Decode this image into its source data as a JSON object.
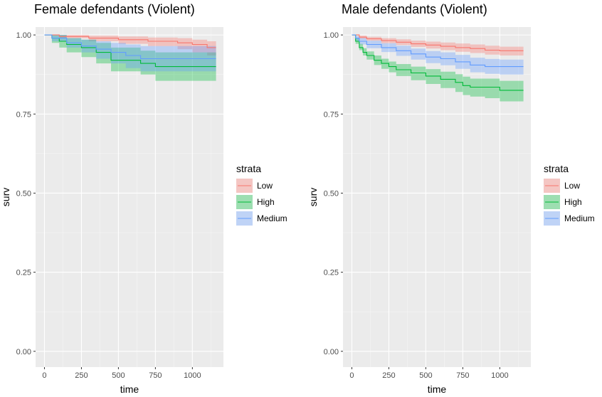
{
  "colors": {
    "panel_bg": "#EBEBEB",
    "grid_major": "#FFFFFF",
    "grid_minor": "#F5F5F5",
    "Low": "#F8766D",
    "High": "#00BA38",
    "Medium": "#619CFF"
  },
  "legend": {
    "title": "strata",
    "items": [
      {
        "key": "Low",
        "label": "Low"
      },
      {
        "key": "High",
        "label": "High"
      },
      {
        "key": "Medium",
        "label": "Medium"
      }
    ]
  },
  "chart_data": [
    {
      "type": "line",
      "title": "Female defendants (Violent)",
      "xlabel": "time",
      "ylabel": "surv",
      "xlim": [
        -60,
        1210
      ],
      "ylim": [
        -0.05,
        1.025
      ],
      "xticks": [
        0,
        250,
        500,
        750,
        1000
      ],
      "xtick_labels": [
        "0",
        "250",
        "500",
        "750",
        "1000"
      ],
      "yticks": [
        0,
        0.25,
        0.5,
        0.75,
        1
      ],
      "ytick_labels": [
        "0.00",
        "0.25",
        "0.50",
        "0.75",
        "1.00"
      ],
      "grid": true,
      "legend_position": "right",
      "series": [
        {
          "name": "Low",
          "x": [
            0,
            100,
            300,
            500,
            700,
            900,
            1000,
            1100,
            1160
          ],
          "y": [
            1.0,
            0.995,
            0.99,
            0.985,
            0.98,
            0.975,
            0.97,
            0.96,
            0.96
          ],
          "lower": [
            1.0,
            0.99,
            0.98,
            0.972,
            0.965,
            0.955,
            0.945,
            0.935,
            0.935
          ],
          "upper": [
            1.0,
            1.0,
            0.998,
            0.995,
            0.992,
            0.99,
            0.985,
            0.98,
            0.98
          ]
        },
        {
          "name": "High",
          "x": [
            0,
            50,
            100,
            150,
            250,
            350,
            450,
            650,
            750,
            1160
          ],
          "y": [
            1.0,
            0.99,
            0.98,
            0.97,
            0.96,
            0.945,
            0.92,
            0.91,
            0.9,
            0.9
          ],
          "lower": [
            1.0,
            0.975,
            0.96,
            0.945,
            0.93,
            0.91,
            0.885,
            0.875,
            0.855,
            0.855
          ],
          "upper": [
            1.0,
            1.0,
            1.0,
            0.99,
            0.985,
            0.975,
            0.96,
            0.95,
            0.945,
            0.945
          ]
        },
        {
          "name": "Medium",
          "x": [
            0,
            50,
            150,
            250,
            350,
            450,
            550,
            650,
            1160
          ],
          "y": [
            1.0,
            0.99,
            0.975,
            0.965,
            0.955,
            0.945,
            0.935,
            0.925,
            0.925
          ],
          "lower": [
            1.0,
            0.98,
            0.96,
            0.945,
            0.925,
            0.91,
            0.895,
            0.885,
            0.885
          ],
          "upper": [
            1.0,
            1.0,
            0.99,
            0.985,
            0.98,
            0.975,
            0.97,
            0.965,
            0.965
          ]
        }
      ]
    },
    {
      "type": "line",
      "title": "Male defendants (Violent)",
      "xlabel": "time",
      "ylabel": "surv",
      "xlim": [
        -60,
        1210
      ],
      "ylim": [
        -0.05,
        1.025
      ],
      "xticks": [
        0,
        250,
        500,
        750,
        1000
      ],
      "xtick_labels": [
        "0",
        "250",
        "500",
        "750",
        "1000"
      ],
      "yticks": [
        0,
        0.25,
        0.5,
        0.75,
        1
      ],
      "ytick_labels": [
        "0.00",
        "0.25",
        "0.50",
        "0.75",
        "1.00"
      ],
      "grid": true,
      "legend_position": "right",
      "series": [
        {
          "name": "Low",
          "x": [
            0,
            50,
            100,
            200,
            300,
            400,
            500,
            600,
            700,
            800,
            900,
            1000,
            1160
          ],
          "y": [
            1.0,
            0.993,
            0.988,
            0.982,
            0.977,
            0.972,
            0.968,
            0.964,
            0.96,
            0.957,
            0.952,
            0.95,
            0.95
          ],
          "lower": [
            1.0,
            0.988,
            0.982,
            0.974,
            0.968,
            0.962,
            0.957,
            0.952,
            0.947,
            0.943,
            0.938,
            0.935,
            0.935
          ],
          "upper": [
            1.0,
            0.998,
            0.994,
            0.99,
            0.986,
            0.982,
            0.979,
            0.976,
            0.973,
            0.97,
            0.966,
            0.963,
            0.963
          ]
        },
        {
          "name": "High",
          "x": [
            0,
            25,
            50,
            75,
            100,
            150,
            200,
            250,
            300,
            400,
            500,
            600,
            700,
            750,
            800,
            900,
            1000,
            1160
          ],
          "y": [
            1.0,
            0.98,
            0.96,
            0.945,
            0.935,
            0.92,
            0.91,
            0.9,
            0.89,
            0.88,
            0.87,
            0.86,
            0.85,
            0.84,
            0.835,
            0.835,
            0.825,
            0.825
          ],
          "lower": [
            1.0,
            0.972,
            0.952,
            0.935,
            0.922,
            0.905,
            0.893,
            0.882,
            0.87,
            0.857,
            0.845,
            0.832,
            0.82,
            0.81,
            0.805,
            0.8,
            0.79,
            0.79
          ],
          "upper": [
            1.0,
            0.99,
            0.972,
            0.958,
            0.948,
            0.935,
            0.925,
            0.916,
            0.908,
            0.9,
            0.892,
            0.884,
            0.876,
            0.868,
            0.862,
            0.862,
            0.855,
            0.855
          ]
        },
        {
          "name": "Medium",
          "x": [
            0,
            25,
            50,
            100,
            200,
            300,
            400,
            500,
            600,
            700,
            800,
            900,
            1000,
            1160
          ],
          "y": [
            1.0,
            0.99,
            0.98,
            0.97,
            0.96,
            0.95,
            0.94,
            0.93,
            0.925,
            0.915,
            0.905,
            0.9,
            0.9,
            0.9
          ],
          "lower": [
            1.0,
            0.982,
            0.97,
            0.958,
            0.946,
            0.934,
            0.922,
            0.911,
            0.904,
            0.893,
            0.882,
            0.877,
            0.875,
            0.875
          ],
          "upper": [
            1.0,
            0.997,
            0.99,
            0.982,
            0.974,
            0.966,
            0.957,
            0.949,
            0.945,
            0.937,
            0.928,
            0.924,
            0.922,
            0.922
          ]
        }
      ]
    }
  ]
}
